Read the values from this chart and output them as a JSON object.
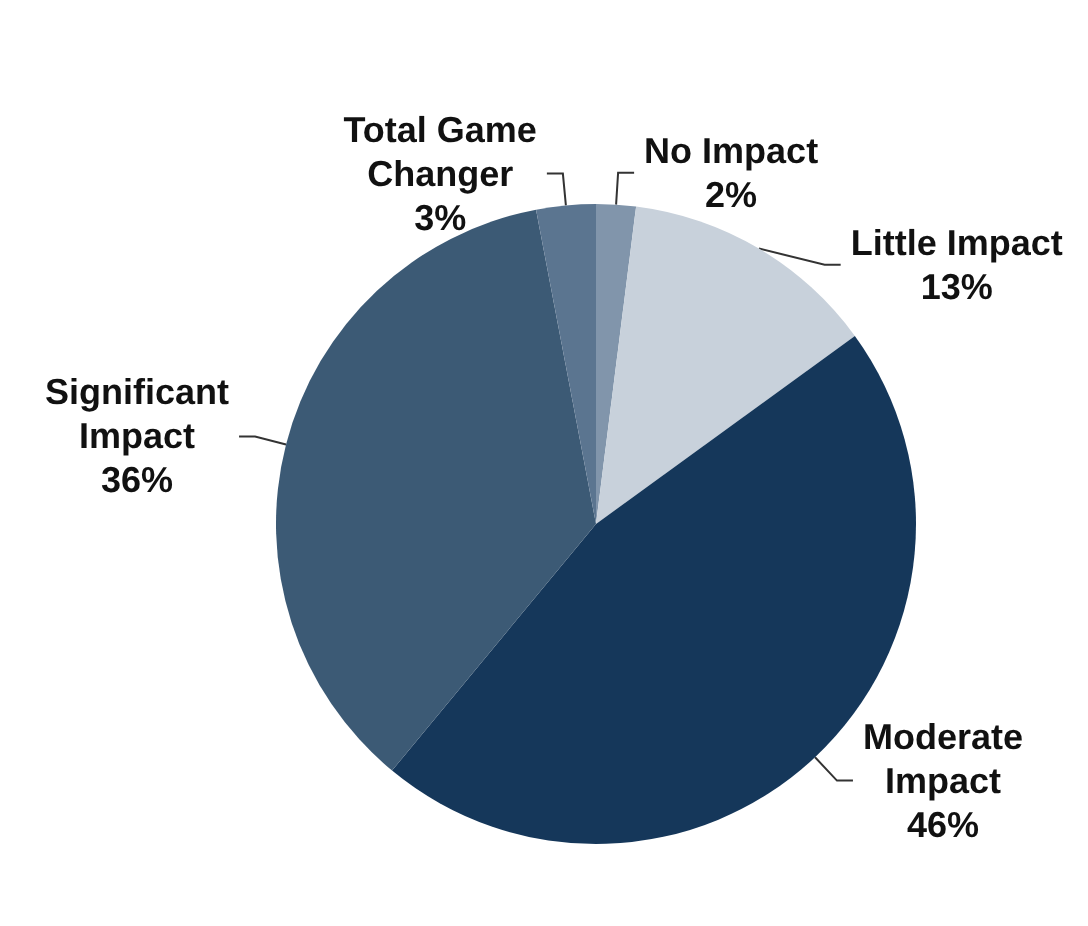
{
  "chart_data": {
    "type": "pie",
    "categories": [
      "No Impact",
      "Little Impact",
      "Moderate Impact",
      "Significant Impact",
      "Total Game Changer"
    ],
    "values": [
      2,
      13,
      46,
      36,
      3
    ],
    "value_labels": [
      "2%",
      "13%",
      "46%",
      "36%",
      "3%"
    ],
    "colors": [
      "#8195ab",
      "#c8d1db",
      "#15375a",
      "#3c5a75",
      "#5b7590"
    ],
    "legend": false
  }
}
